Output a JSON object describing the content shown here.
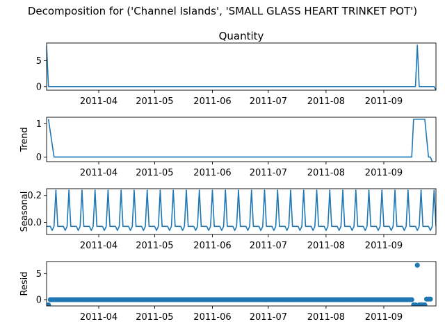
{
  "figure": {
    "suptitle": "Decomposition for ('Channel Islands', 'SMALL GLASS HEART TRINKET POT')"
  },
  "chart_data": [
    {
      "type": "line",
      "title": "Quantity",
      "ylabel": "",
      "xlim": [
        "2011-03-04",
        "2011-09-29"
      ],
      "ylim": [
        -0.7,
        8.4
      ],
      "yticks": [
        0,
        5
      ],
      "xticks": [
        "2011-04",
        "2011-05",
        "2011-06",
        "2011-07",
        "2011-08",
        "2011-09"
      ],
      "series": [
        {
          "color": "#1f77b4",
          "points": [
            [
              "2011-03-04",
              8
            ],
            [
              "2011-03-05",
              0
            ],
            [
              "2011-09-18",
              0
            ],
            [
              "2011-09-19",
              8
            ],
            [
              "2011-09-20",
              0
            ],
            [
              "2011-09-28",
              0
            ],
            [
              "2011-09-29",
              -0.7
            ]
          ]
        }
      ]
    },
    {
      "type": "line",
      "title": "",
      "ylabel": "Trend",
      "xlim": [
        "2011-03-04",
        "2011-09-29"
      ],
      "ylim": [
        -0.14,
        1.2
      ],
      "yticks": [
        0,
        1
      ],
      "xticks": [
        "2011-04",
        "2011-05",
        "2011-06",
        "2011-07",
        "2011-08",
        "2011-09"
      ],
      "series": [
        {
          "color": "#1f77b4",
          "points": [
            [
              "2011-03-05",
              1.14
            ],
            [
              "2011-03-08",
              0
            ],
            [
              "2011-09-16",
              0
            ],
            [
              "2011-09-17",
              1.14
            ],
            [
              "2011-09-23",
              1.14
            ],
            [
              "2011-09-25",
              0
            ],
            [
              "2011-09-26",
              0
            ],
            [
              "2011-09-27",
              -0.14
            ]
          ]
        }
      ]
    },
    {
      "type": "line",
      "title": "",
      "ylabel": "Seasonal",
      "xlim": [
        "2011-03-04",
        "2011-09-29"
      ],
      "ylim": [
        -0.09,
        0.25
      ],
      "yticks": [
        0.0,
        0.2
      ],
      "ytick_labels": [
        "0.0",
        "0.2"
      ],
      "xticks": [
        "2011-04",
        "2011-05",
        "2011-06",
        "2011-07",
        "2011-08",
        "2011-09"
      ],
      "series": [
        {
          "color": "#1f77b4",
          "pattern": [
            -0.03,
            -0.03,
            -0.03,
            -0.06,
            -0.03,
            0.24,
            -0.03
          ],
          "start": "2011-03-04",
          "end": "2011-09-29",
          "spike_offset": 5
        }
      ]
    },
    {
      "type": "scatter",
      "title": "",
      "ylabel": "Resid",
      "xlim": [
        "2011-03-04",
        "2011-09-29"
      ],
      "ylim": [
        -1.2,
        7.3
      ],
      "yticks": [
        0,
        5
      ],
      "xticks": [
        "2011-04",
        "2011-05",
        "2011-06",
        "2011-07",
        "2011-08",
        "2011-09"
      ],
      "series": [
        {
          "color": "#1f77b4",
          "baseline": 0,
          "start": "2011-03-06",
          "end": "2011-09-16",
          "outliers": [
            [
              "2011-03-05",
              -1.0
            ],
            [
              "2011-09-17",
              -1.0
            ],
            [
              "2011-09-18",
              -1.0
            ],
            [
              "2011-09-19",
              6.6
            ],
            [
              "2011-09-20",
              -1.0
            ],
            [
              "2011-09-21",
              -1.0
            ],
            [
              "2011-09-22",
              -1.0
            ],
            [
              "2011-09-23",
              -1.0
            ],
            [
              "2011-09-24",
              0.1
            ],
            [
              "2011-09-25",
              0.1
            ],
            [
              "2011-09-26",
              0.1
            ]
          ]
        }
      ]
    }
  ]
}
